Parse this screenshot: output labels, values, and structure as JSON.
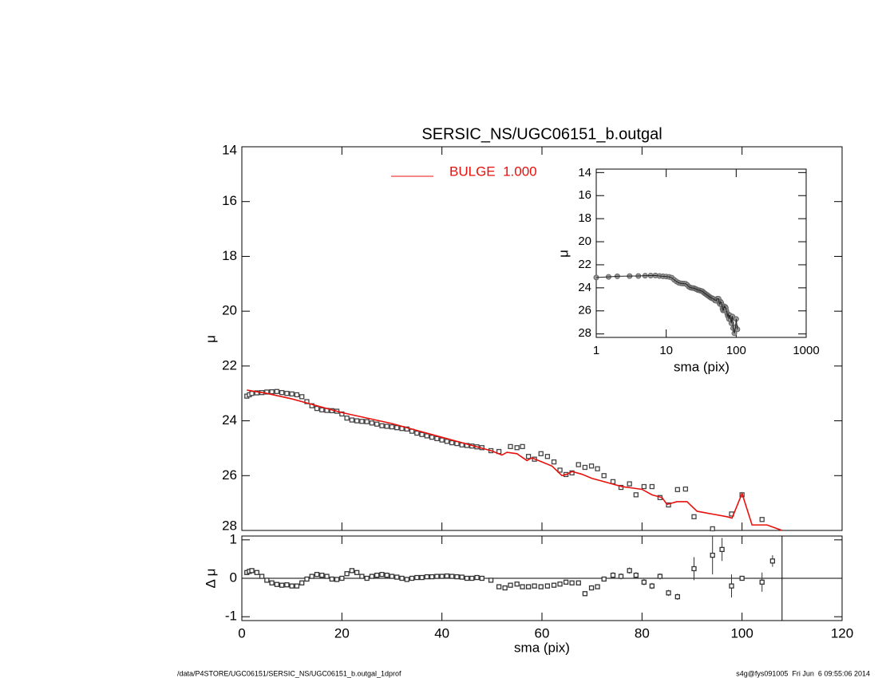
{
  "chart_data": [
    {
      "type": "line",
      "title": "SERSIC_NS/UGC06151_b.outgal",
      "ylabel": "μ",
      "xlim": [
        0,
        120
      ],
      "ylim": [
        14,
        28
      ],
      "yticks": [
        14,
        16,
        18,
        20,
        22,
        24,
        26,
        28
      ],
      "legend": "top",
      "series": [
        {
          "mode": "markers",
          "color": "#888888",
          "x": [
            1,
            1.5,
            2,
            3,
            4,
            5,
            6,
            7,
            8,
            9,
            10,
            11,
            12,
            13,
            14,
            15,
            16,
            17,
            18,
            19,
            20,
            21,
            22,
            23,
            24,
            25,
            26,
            27,
            28,
            29,
            30,
            31,
            32,
            33,
            34,
            35,
            36,
            37,
            38,
            39,
            40,
            41,
            42,
            43,
            44,
            45,
            46,
            47,
            48,
            49.8,
            51.4,
            53.7,
            55,
            56.1,
            57.3,
            58.5,
            59.8,
            61.1,
            62.4,
            63.6,
            64.8,
            66,
            67.3,
            68.6,
            69.9,
            71.1,
            72.4,
            74.2,
            75.8,
            77.5,
            78.8,
            80.4,
            82,
            83.6,
            85.3,
            87.1,
            88.7,
            90.4,
            94.1,
            97.9,
            100,
            104
          ],
          "values": [
            23.1,
            23.05,
            23.0,
            22.98,
            22.97,
            22.95,
            22.94,
            22.93,
            22.97,
            23.0,
            23.02,
            23.05,
            23.12,
            23.3,
            23.45,
            23.55,
            23.6,
            23.62,
            23.63,
            23.65,
            23.75,
            23.9,
            23.97,
            24.0,
            24.02,
            24.03,
            24.08,
            24.12,
            24.18,
            24.2,
            24.22,
            24.25,
            24.28,
            24.3,
            24.38,
            24.45,
            24.5,
            24.55,
            24.6,
            24.65,
            24.7,
            24.75,
            24.8,
            24.83,
            24.88,
            24.9,
            24.92,
            24.95,
            24.98,
            25.09,
            25.12,
            24.94,
            24.98,
            24.94,
            25.3,
            25.4,
            25.2,
            25.3,
            25.5,
            25.8,
            25.96,
            25.9,
            25.6,
            25.7,
            25.65,
            25.75,
            26.0,
            26.22,
            26.43,
            26.3,
            26.7,
            26.4,
            26.4,
            26.8,
            27.07,
            26.51,
            26.49,
            27.5,
            27.94,
            27.4,
            26.7,
            27.6
          ]
        },
        {
          "mode": "line",
          "name": "BULGE  1.000",
          "color": "#e8100c",
          "x": [
            1,
            5,
            10,
            15,
            20,
            25,
            30,
            35,
            40,
            45,
            50,
            52,
            53,
            55,
            57,
            58,
            60,
            62,
            64,
            65,
            66,
            68,
            70,
            72,
            74,
            76,
            78,
            80,
            82,
            84,
            85,
            87,
            89,
            91,
            94,
            97,
            98,
            100,
            102,
            105,
            108
          ],
          "values": [
            22.88,
            23.0,
            23.2,
            23.45,
            23.7,
            23.9,
            24.1,
            24.35,
            24.6,
            24.85,
            25.1,
            25.25,
            25.15,
            25.2,
            25.45,
            25.35,
            25.5,
            25.65,
            26.0,
            25.95,
            25.85,
            25.95,
            26.1,
            26.2,
            26.3,
            26.4,
            26.45,
            26.5,
            26.7,
            26.8,
            27.05,
            26.95,
            26.95,
            27.3,
            27.4,
            27.5,
            27.55,
            26.65,
            27.8,
            27.8,
            28.0
          ]
        }
      ]
    },
    {
      "type": "scatter",
      "xlabel": "sma (pix)",
      "ylabel": "Δ μ",
      "xlim": [
        0,
        120
      ],
      "xticks": [
        0,
        20,
        40,
        60,
        80,
        100,
        120
      ],
      "ylim": [
        -1.1,
        1.1
      ],
      "yticks": [
        -1,
        0,
        1
      ],
      "reference_line": 0,
      "fit_limit": 108,
      "x": [
        1,
        1.5,
        2,
        3,
        4,
        5,
        6,
        7,
        8,
        9,
        10,
        11,
        12,
        13,
        14,
        15,
        16,
        17,
        18,
        19,
        20,
        21,
        22,
        23,
        24,
        25,
        26,
        27,
        28,
        29,
        30,
        31,
        32,
        33,
        34,
        35,
        36,
        37,
        38,
        39,
        40,
        41,
        42,
        43,
        44,
        45,
        46,
        47,
        48,
        49.8,
        51.4,
        52.6,
        53.7,
        55,
        56.1,
        57.3,
        58.5,
        59.8,
        61.1,
        62.4,
        63.6,
        64.8,
        66,
        67.3,
        68.6,
        69.9,
        71.1,
        72.4,
        74.2,
        75.8,
        77.5,
        78.8,
        80.4,
        82,
        83.6,
        85.3,
        87.1,
        90.4,
        94.1,
        96,
        97.9,
        100,
        104,
        106.1
      ],
      "values": [
        0.15,
        0.18,
        0.2,
        0.15,
        0.05,
        -0.05,
        -0.12,
        -0.16,
        -0.18,
        -0.17,
        -0.2,
        -0.2,
        -0.12,
        -0.02,
        0.05,
        0.1,
        0.08,
        0.05,
        -0.02,
        -0.03,
        0.0,
        0.12,
        0.2,
        0.15,
        0.05,
        0.0,
        0.05,
        0.08,
        0.1,
        0.08,
        0.05,
        0.03,
        0.0,
        -0.03,
        0.0,
        0.02,
        0.02,
        0.04,
        0.04,
        0.05,
        0.05,
        0.06,
        0.05,
        0.04,
        0.03,
        0.0,
        0.0,
        0.02,
        0.0,
        -0.05,
        -0.22,
        -0.25,
        -0.18,
        -0.15,
        -0.22,
        -0.22,
        -0.2,
        -0.22,
        -0.2,
        -0.18,
        -0.15,
        -0.1,
        -0.12,
        -0.12,
        -0.4,
        -0.25,
        -0.22,
        -0.02,
        0.08,
        0.05,
        0.2,
        0.08,
        -0.1,
        -0.2,
        0.05,
        -0.38,
        -0.48,
        0.25,
        0.6,
        0.75,
        -0.2,
        0.0,
        -0.1,
        0.45
      ],
      "errors": [
        0.03,
        0.03,
        0.03,
        0.03,
        0.03,
        0.03,
        0.03,
        0.03,
        0.03,
        0.03,
        0.03,
        0.03,
        0.03,
        0.03,
        0.03,
        0.03,
        0.03,
        0.03,
        0.03,
        0.03,
        0.03,
        0.03,
        0.03,
        0.03,
        0.03,
        0.03,
        0.03,
        0.03,
        0.03,
        0.03,
        0.03,
        0.03,
        0.03,
        0.03,
        0.03,
        0.03,
        0.03,
        0.03,
        0.03,
        0.03,
        0.03,
        0.03,
        0.03,
        0.03,
        0.03,
        0.03,
        0.03,
        0.03,
        0.03,
        0.04,
        0.04,
        0.04,
        0.04,
        0.04,
        0.04,
        0.04,
        0.04,
        0.04,
        0.04,
        0.04,
        0.04,
        0.04,
        0.04,
        0.04,
        0.04,
        0.04,
        0.04,
        0.04,
        0.08,
        0.08,
        0.08,
        0.08,
        0.08,
        0.08,
        0.08,
        0.08,
        0.08,
        0.3,
        0.5,
        0.3,
        0.3,
        0.05,
        0.25,
        0.15
      ]
    },
    {
      "type": "scatter",
      "xlabel": "sma (pix)",
      "ylabel": "μ",
      "xlog": true,
      "xlim": [
        1,
        1000
      ],
      "xticks": [
        1,
        10,
        100,
        1000
      ],
      "ylim": [
        13.7,
        28.3
      ],
      "yticks": [
        14,
        16,
        18,
        20,
        22,
        24,
        26,
        28
      ]
    }
  ],
  "footer": {
    "left": "/data/P4STORE/UGC06151/SERSIC_NS/UGC06151_b.outgal_1dprof",
    "right": "s4g@fys091005  Fri Jun  6 09:55:06 2014"
  }
}
